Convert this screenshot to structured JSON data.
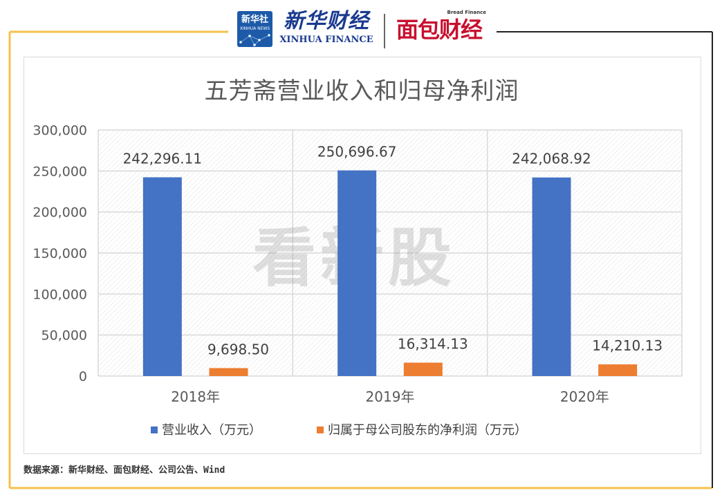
{
  "header": {
    "xinhua_badge_cn": "新华社",
    "xinhua_badge_en": "XINHUA NEWS",
    "xinhua_finance_cn": "新华财经",
    "xinhua_finance_en": "XINHUA FINANCE",
    "bread_finance_en": "Bread Finance",
    "bread_finance_cn": "面包财经"
  },
  "watermark": "看新股",
  "source_note": "数据来源：新华财经、面包财经、公司公告、Wind",
  "colors": {
    "revenue": "#4472c4",
    "net_profit": "#ed7d31",
    "frame_gold": "#f5c24b",
    "frame_dark": "#222222"
  },
  "chart_data": {
    "type": "bar",
    "title": "五芳斋营业收入和归母净利润",
    "categories": [
      "2018年",
      "2019年",
      "2020年"
    ],
    "series": [
      {
        "name": "营业收入（万元）",
        "values": [
          242296.11,
          250696.67,
          242068.92
        ],
        "labels": [
          "242,296.11",
          "250,696.67",
          "242,068.92"
        ]
      },
      {
        "name": "归属于母公司股东的净利润（万元）",
        "values": [
          9698.5,
          16314.13,
          14210.13
        ],
        "labels": [
          "9,698.50",
          "16,314.13",
          "14,210.13"
        ]
      }
    ],
    "ylim": [
      0,
      300000
    ],
    "yticks": [
      "0",
      "50,000",
      "100,000",
      "150,000",
      "200,000",
      "250,000",
      "300,000"
    ],
    "grid": true,
    "legend_position": "bottom"
  }
}
